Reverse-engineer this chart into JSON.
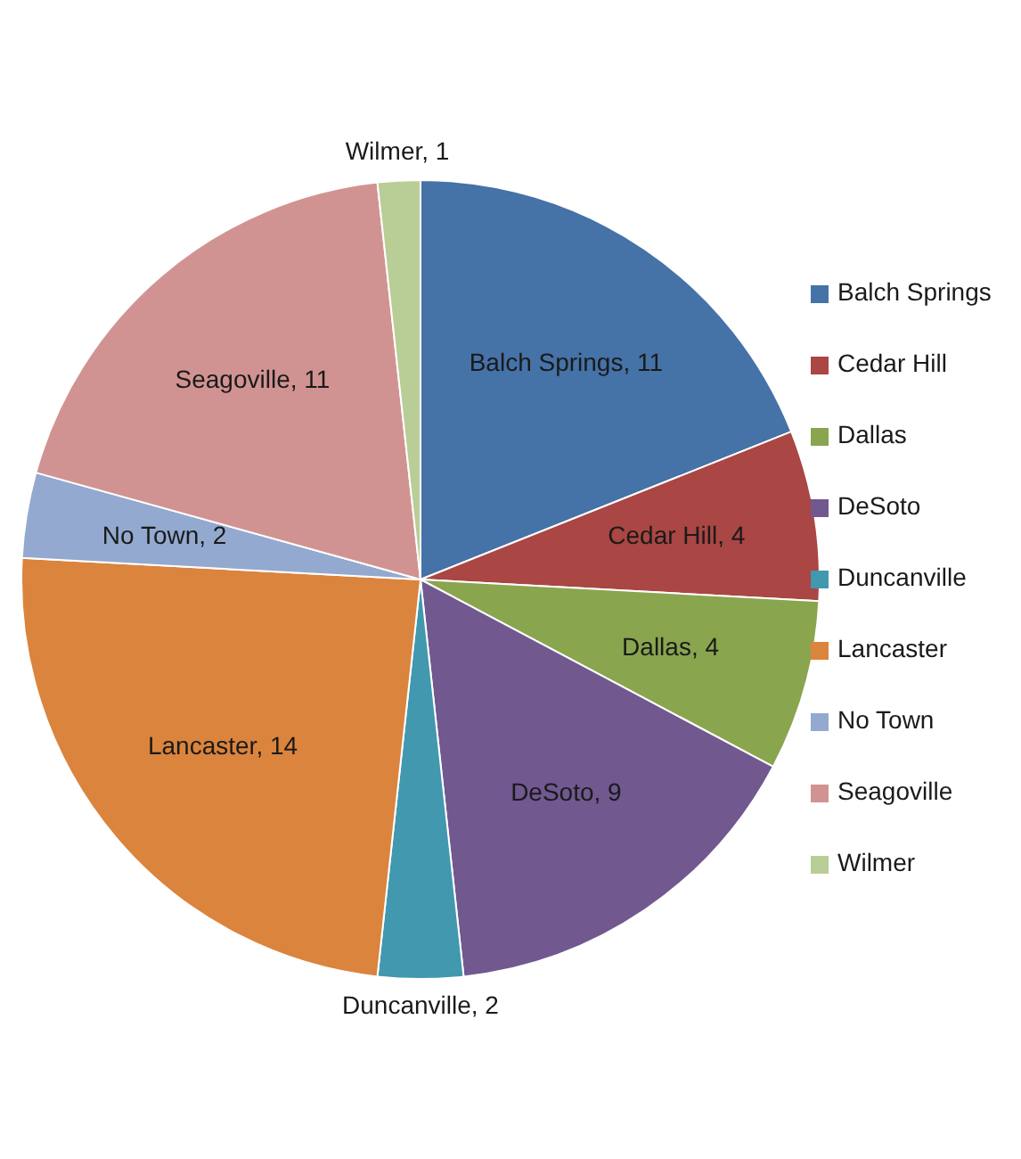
{
  "chart_data": {
    "type": "pie",
    "categories": [
      "Balch Springs",
      "Cedar Hill",
      "Dallas",
      "DeSoto",
      "Duncanville",
      "Lancaster",
      "No Town",
      "Seagoville",
      "Wilmer"
    ],
    "values": [
      11,
      4,
      4,
      9,
      2,
      14,
      2,
      11,
      1
    ],
    "colors": [
      "#4572a7",
      "#aa4643",
      "#89a54e",
      "#71588f",
      "#4198af",
      "#db843d",
      "#93a9cf",
      "#d19392",
      "#b9cd96"
    ],
    "value_labels": [
      "Balch Springs, 11",
      "Cedar Hill, 4",
      "Dallas, 4",
      "DeSoto, 9",
      "Duncanville, 2",
      "Lancaster, 14",
      "No Town, 2",
      "Seagoville, 11",
      "Wilmer, 1"
    ],
    "legend": "right"
  }
}
